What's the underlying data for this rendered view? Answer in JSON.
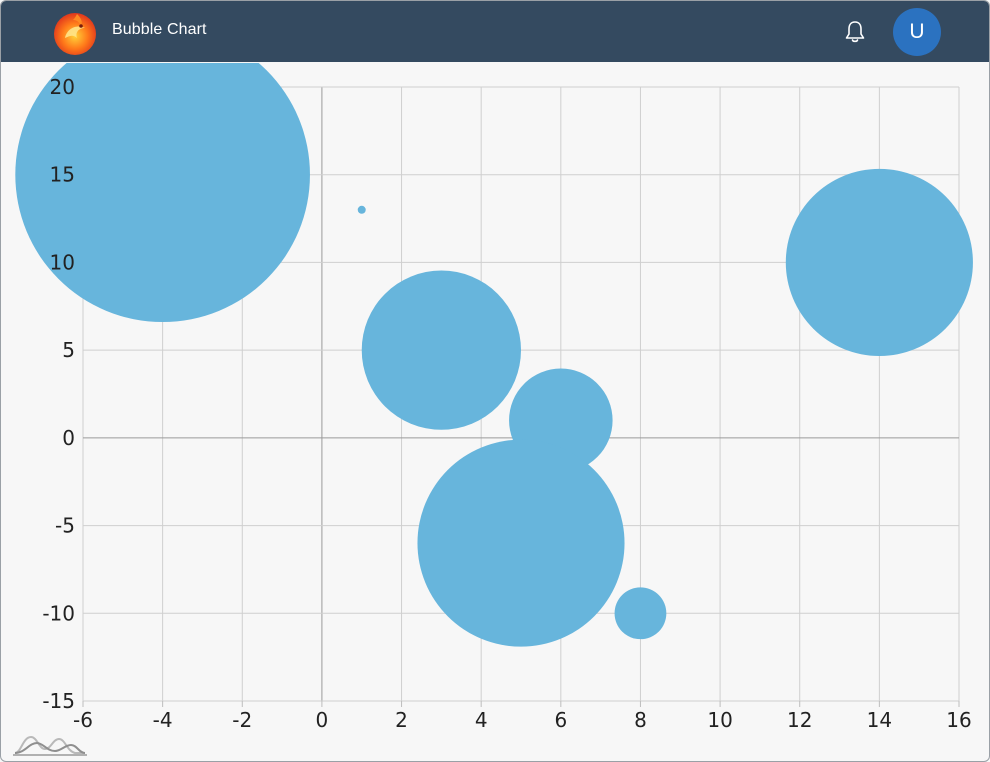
{
  "header": {
    "title": "Bubble Chart",
    "avatar_initial": "U",
    "background": "#344a60",
    "avatar_color": "#2b72c0"
  },
  "icons": {
    "logo": "phoenix-logo-icon",
    "bell": "bell-icon",
    "watermark": "mountain-line-icon"
  },
  "chart_data": {
    "type": "scatter",
    "subtype": "bubble",
    "xlim": [
      -6,
      16
    ],
    "ylim": [
      -15,
      20
    ],
    "x_ticks": [
      -6,
      -4,
      -2,
      0,
      2,
      4,
      6,
      8,
      10,
      12,
      14,
      16
    ],
    "y_ticks": [
      -15,
      -10,
      -5,
      0,
      5,
      10,
      15,
      20
    ],
    "grid": true,
    "legend": "none",
    "bubble_color": "#67b5dc",
    "series": [
      {
        "points": [
          {
            "x": -4,
            "y": 15,
            "size": 37
          },
          {
            "x": 1,
            "y": 13,
            "size": 1
          },
          {
            "x": 3,
            "y": 5,
            "size": 20
          },
          {
            "x": 6,
            "y": 1,
            "size": 13
          },
          {
            "x": 5,
            "y": -6,
            "size": 26
          },
          {
            "x": 8,
            "y": -10,
            "size": 6.5
          },
          {
            "x": 14,
            "y": 10,
            "size": 23.5
          }
        ]
      }
    ]
  }
}
